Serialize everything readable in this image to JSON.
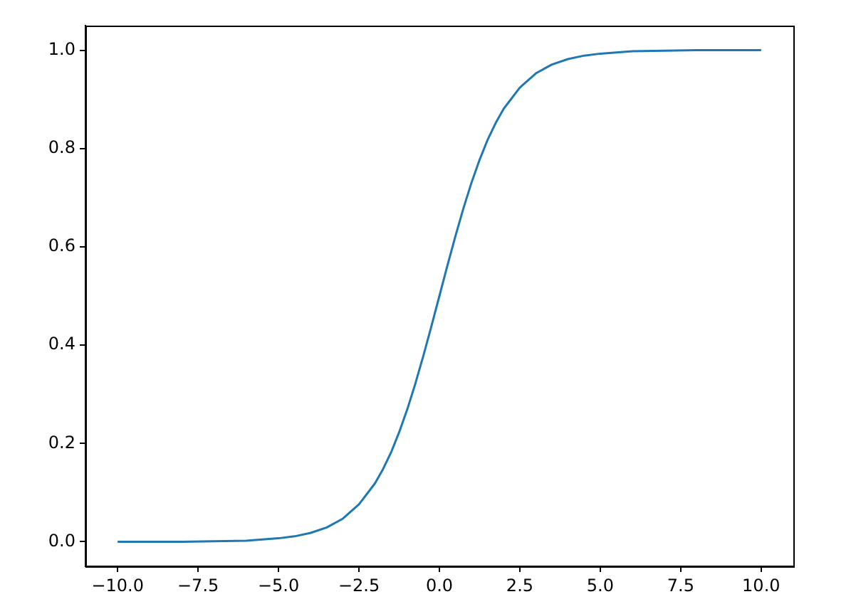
{
  "chart_data": {
    "type": "line",
    "x": [
      -10,
      -9,
      -8,
      -7,
      -6,
      -5,
      -4.5,
      -4,
      -3.5,
      -3,
      -2.5,
      -2,
      -1.75,
      -1.5,
      -1.25,
      -1,
      -0.75,
      -0.5,
      -0.25,
      0,
      0.25,
      0.5,
      0.75,
      1,
      1.25,
      1.5,
      1.75,
      2,
      2.5,
      3,
      3.5,
      4,
      4.5,
      5,
      6,
      7,
      8,
      9,
      10
    ],
    "series": [
      {
        "color": "#1f77b4",
        "values": [
          0.0,
          0.0,
          0.0,
          0.001,
          0.002,
          0.007,
          0.011,
          0.018,
          0.029,
          0.047,
          0.076,
          0.119,
          0.148,
          0.182,
          0.223,
          0.269,
          0.321,
          0.378,
          0.438,
          0.5,
          0.562,
          0.622,
          0.679,
          0.731,
          0.777,
          0.818,
          0.852,
          0.881,
          0.924,
          0.953,
          0.971,
          0.982,
          0.989,
          0.993,
          0.998,
          0.999,
          1.0,
          1.0,
          1.0
        ]
      }
    ],
    "xlim": [
      -11,
      11
    ],
    "xticks": [
      {
        "value": -10,
        "label": "−10.0"
      },
      {
        "value": -7.5,
        "label": "−7.5"
      },
      {
        "value": -5,
        "label": "−5.0"
      },
      {
        "value": -2.5,
        "label": "−2.5"
      },
      {
        "value": 0,
        "label": "0.0"
      },
      {
        "value": 2.5,
        "label": "2.5"
      },
      {
        "value": 5,
        "label": "5.0"
      },
      {
        "value": 7.5,
        "label": "7.5"
      },
      {
        "value": 10,
        "label": "10.0"
      }
    ],
    "ylim": [
      -0.05,
      1.05
    ],
    "yticks": [
      {
        "value": 0,
        "label": "0.0"
      },
      {
        "value": 0.2,
        "label": "0.2"
      },
      {
        "value": 0.4,
        "label": "0.4"
      },
      {
        "value": 0.6,
        "label": "0.6"
      },
      {
        "value": 0.8,
        "label": "0.8"
      },
      {
        "value": 1,
        "label": "1.0"
      }
    ],
    "grid": false,
    "legend": false,
    "marker": "none",
    "line_style": "solid"
  }
}
